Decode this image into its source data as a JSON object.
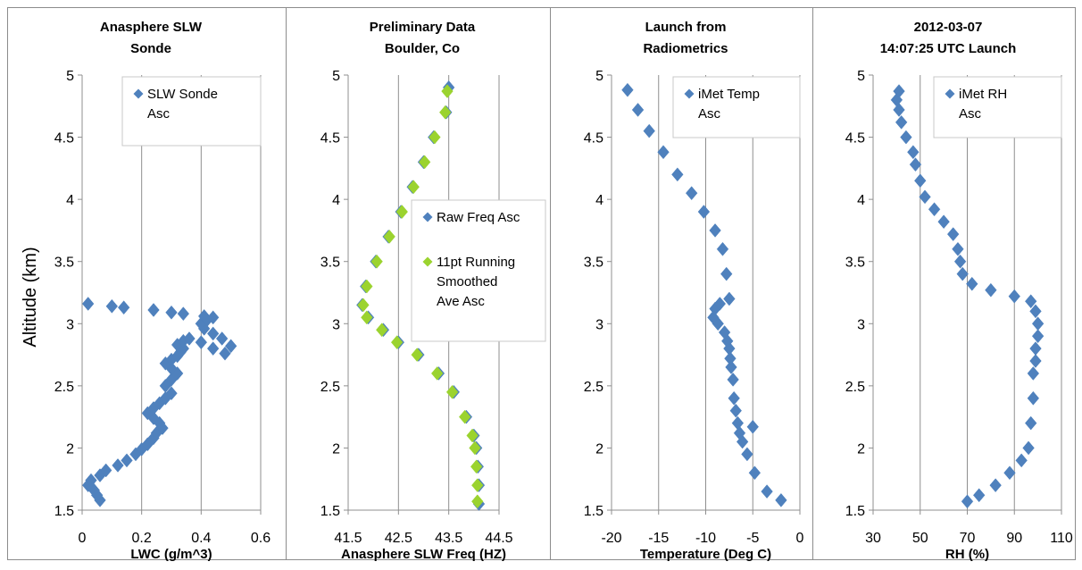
{
  "chart_data": [
    {
      "type": "scatter",
      "title_lines": [
        "Anasphere SLW",
        "Sonde"
      ],
      "xlabel": "LWC (g/m^3)",
      "ylabel": "Altitude (km)",
      "xlim": [
        0,
        0.6
      ],
      "ylim": [
        1.5,
        5
      ],
      "xticks": [
        "0",
        "0.2",
        "0.4",
        "0.6"
      ],
      "xtick_values": [
        0,
        0.2,
        0.4,
        0.6
      ],
      "yticks": [
        "1.5",
        "2",
        "2.5",
        "3",
        "3.5",
        "4",
        "4.5",
        "5"
      ],
      "ytick_values": [
        1.5,
        2,
        2.5,
        3,
        3.5,
        4,
        4.5,
        5
      ],
      "grid": "vertical",
      "legend_position": "top-right",
      "series": [
        {
          "name_lines": [
            "SLW Sonde",
            "Asc"
          ],
          "color": "#4F81BD",
          "marker": "diamond",
          "x": [
            0.06,
            0.05,
            0.04,
            0.02,
            0.03,
            0.06,
            0.08,
            0.12,
            0.15,
            0.18,
            0.2,
            0.22,
            0.24,
            0.25,
            0.27,
            0.26,
            0.24,
            0.22,
            0.24,
            0.26,
            0.28,
            0.3,
            0.28,
            0.3,
            0.32,
            0.3,
            0.28,
            0.3,
            0.32,
            0.33,
            0.34,
            0.32,
            0.34,
            0.36,
            0.4,
            0.44,
            0.48,
            0.5,
            0.47,
            0.44,
            0.41,
            0.4,
            0.42,
            0.44,
            0.41,
            0.34,
            0.3,
            0.24,
            0.14,
            0.1,
            0.02
          ],
          "y": [
            1.58,
            1.62,
            1.66,
            1.7,
            1.74,
            1.78,
            1.82,
            1.86,
            1.9,
            1.95,
            1.99,
            2.03,
            2.08,
            2.12,
            2.16,
            2.2,
            2.24,
            2.28,
            2.32,
            2.36,
            2.4,
            2.44,
            2.5,
            2.55,
            2.6,
            2.64,
            2.68,
            2.71,
            2.74,
            2.77,
            2.8,
            2.83,
            2.86,
            2.88,
            2.85,
            2.8,
            2.76,
            2.82,
            2.88,
            2.92,
            2.96,
            3.0,
            3.03,
            3.05,
            3.06,
            3.08,
            3.09,
            3.11,
            3.13,
            3.14,
            3.16
          ]
        }
      ]
    },
    {
      "type": "scatter",
      "title_lines": [
        "Preliminary Data",
        "Boulder, Co"
      ],
      "xlabel": "Anasphere SLW Freq (HZ)",
      "xlim": [
        41.5,
        44.5
      ],
      "ylim": [
        1.5,
        5
      ],
      "xticks": [
        "41.5",
        "42.5",
        "43.5",
        "44.5"
      ],
      "xtick_values": [
        41.5,
        42.5,
        43.5,
        44.5
      ],
      "yticks": [
        "1.5",
        "2",
        "2.5",
        "3",
        "3.5",
        "4",
        "4.5",
        "5"
      ],
      "ytick_values": [
        1.5,
        2,
        2.5,
        3,
        3.5,
        4,
        4.5,
        5
      ],
      "grid": "vertical",
      "legend_position": "right",
      "series": [
        {
          "name_lines": [
            "Raw Freq Asc"
          ],
          "color": "#4F81BD",
          "marker": "diamond",
          "x": [
            44.1,
            44.1,
            44.08,
            44.05,
            44.0,
            43.85,
            43.6,
            43.3,
            42.9,
            42.5,
            42.2,
            41.9,
            41.78,
            41.85,
            42.05,
            42.3,
            42.55,
            42.78,
            43.0,
            43.2,
            43.45,
            43.5
          ],
          "y": [
            1.55,
            1.7,
            1.85,
            2.0,
            2.1,
            2.25,
            2.45,
            2.6,
            2.75,
            2.85,
            2.95,
            3.05,
            3.15,
            3.3,
            3.5,
            3.7,
            3.9,
            4.1,
            4.3,
            4.5,
            4.7,
            4.9
          ]
        },
        {
          "name_lines": [
            "11pt Running",
            "Smoothed",
            "Ave Asc"
          ],
          "color": "#9BD32F",
          "marker": "diamond",
          "x": [
            44.07,
            44.07,
            44.05,
            44.02,
            43.97,
            43.82,
            43.57,
            43.27,
            42.87,
            42.47,
            42.17,
            41.87,
            41.8,
            41.87,
            42.07,
            42.32,
            42.57,
            42.8,
            43.02,
            43.22,
            43.43,
            43.47
          ],
          "y": [
            1.57,
            1.7,
            1.85,
            2.0,
            2.1,
            2.25,
            2.45,
            2.6,
            2.75,
            2.85,
            2.95,
            3.05,
            3.15,
            3.3,
            3.5,
            3.7,
            3.9,
            4.1,
            4.3,
            4.5,
            4.7,
            4.87
          ]
        }
      ]
    },
    {
      "type": "scatter",
      "title_lines": [
        "Launch from",
        "Radiometrics"
      ],
      "xlabel": "Temperature (Deg C)",
      "xlim": [
        -20,
        0
      ],
      "ylim": [
        1.5,
        5
      ],
      "xticks": [
        "-20",
        "-15",
        "-10",
        "-5",
        "0"
      ],
      "xtick_values": [
        -20,
        -15,
        -10,
        -5,
        0
      ],
      "yticks": [
        "1.5",
        "2",
        "2.5",
        "3",
        "3.5",
        "4",
        "4.5",
        "5"
      ],
      "ytick_values": [
        1.5,
        2,
        2.5,
        3,
        3.5,
        4,
        4.5,
        5
      ],
      "grid": "vertical",
      "legend_position": "top-right",
      "series": [
        {
          "name_lines": [
            "iMet Temp",
            "Asc"
          ],
          "color": "#4F81BD",
          "marker": "diamond",
          "x": [
            -2.0,
            -3.5,
            -4.8,
            -5.6,
            -6.1,
            -6.4,
            -6.6,
            -6.8,
            -5.0,
            -7.0,
            -7.1,
            -7.3,
            -7.4,
            -7.5,
            -7.7,
            -8.0,
            -8.7,
            -9.2,
            -9.0,
            -8.5,
            -7.5,
            -7.8,
            -8.2,
            -9.0,
            -10.2,
            -11.5,
            -13.0,
            -14.5,
            -16.0,
            -17.2,
            -18.3
          ],
          "y": [
            1.58,
            1.65,
            1.8,
            1.95,
            2.05,
            2.12,
            2.2,
            2.3,
            2.17,
            2.4,
            2.55,
            2.65,
            2.72,
            2.8,
            2.86,
            2.93,
            3.0,
            3.05,
            3.12,
            3.16,
            3.2,
            3.4,
            3.6,
            3.75,
            3.9,
            4.05,
            4.2,
            4.38,
            4.55,
            4.72,
            4.88
          ]
        }
      ]
    },
    {
      "type": "scatter",
      "title_lines": [
        "2012-03-07",
        "14:07:25 UTC Launch"
      ],
      "xlabel": "RH (%)",
      "xlim": [
        30,
        110
      ],
      "ylim": [
        1.5,
        5
      ],
      "xticks": [
        "30",
        "50",
        "70",
        "90",
        "110"
      ],
      "xtick_values": [
        30,
        50,
        70,
        90,
        110
      ],
      "yticks": [
        "1.5",
        "2",
        "2.5",
        "3",
        "3.5",
        "4",
        "4.5",
        "5"
      ],
      "ytick_values": [
        1.5,
        2,
        2.5,
        3,
        3.5,
        4,
        4.5,
        5
      ],
      "grid": "vertical",
      "legend_position": "top-right",
      "series": [
        {
          "name_lines": [
            "iMet RH",
            "Asc"
          ],
          "color": "#4F81BD",
          "marker": "diamond",
          "x": [
            70,
            75,
            82,
            88,
            93,
            96,
            97,
            98,
            98,
            99,
            99,
            100,
            100,
            99,
            97,
            90,
            80,
            72,
            68,
            67,
            66,
            64,
            60,
            56,
            52,
            50,
            48,
            47,
            44,
            42,
            41,
            40,
            41
          ],
          "y": [
            1.57,
            1.62,
            1.7,
            1.8,
            1.9,
            2.0,
            2.2,
            2.4,
            2.6,
            2.7,
            2.8,
            2.9,
            3.0,
            3.1,
            3.18,
            3.22,
            3.27,
            3.32,
            3.4,
            3.5,
            3.6,
            3.72,
            3.82,
            3.92,
            4.02,
            4.15,
            4.28,
            4.38,
            4.5,
            4.62,
            4.72,
            4.8,
            4.87
          ]
        }
      ]
    }
  ]
}
